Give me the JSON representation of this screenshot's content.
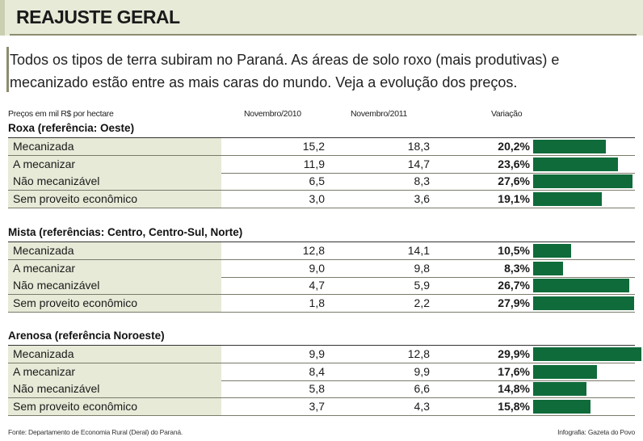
{
  "header": {
    "title": "REAJUSTE GERAL"
  },
  "intro": "Todos os tipos de terra subiram no Paraná. As áreas de solo roxo (mais produtivas) e mecanizado estão entre as mais caras do mundo. Veja a evolução dos preços.",
  "columns": {
    "unit_label": "Preços em mil R$ por hectare",
    "col_2010": "Novembro/2010",
    "col_2011": "Novembro/2011",
    "col_var": "Variação"
  },
  "colors": {
    "bar": "#0f6b3a",
    "row_shade": "#e6ead7"
  },
  "chart_data": {
    "type": "table",
    "bar_series": "Variação (%)",
    "groups": [
      {
        "title": "Roxa (referência: Oeste)",
        "rows": [
          {
            "label": "Mecanizada",
            "v2010": "15,2",
            "v2011": "18,3",
            "var_text": "20,2%",
            "var": 20.2
          },
          {
            "label": "A mecanizar",
            "v2010": "11,9",
            "v2011": "14,7",
            "var_text": "23,6%",
            "var": 23.6
          },
          {
            "label": "Não mecanizável",
            "v2010": "6,5",
            "v2011": "8,3",
            "var_text": "27,6%",
            "var": 27.6
          },
          {
            "label": "Sem proveito econômico",
            "v2010": "3,0",
            "v2011": "3,6",
            "var_text": "19,1%",
            "var": 19.1
          }
        ]
      },
      {
        "title": "Mista (referências: Centro, Centro-Sul, Norte)",
        "rows": [
          {
            "label": "Mecanizada",
            "v2010": "12,8",
            "v2011": "14,1",
            "var_text": "10,5%",
            "var": 10.5
          },
          {
            "label": "A mecanizar",
            "v2010": "9,0",
            "v2011": "9,8",
            "var_text": "8,3%",
            "var": 8.3
          },
          {
            "label": "Não mecanizável",
            "v2010": "4,7",
            "v2011": "5,9",
            "var_text": "26,7%",
            "var": 26.7
          },
          {
            "label": "Sem proveito econômico",
            "v2010": "1,8",
            "v2011": "2,2",
            "var_text": "27,9%",
            "var": 27.9
          }
        ]
      },
      {
        "title": "Arenosa (referência Noroeste)",
        "rows": [
          {
            "label": "Mecanizada",
            "v2010": "9,9",
            "v2011": "12,8",
            "var_text": "29,9%",
            "var": 29.9
          },
          {
            "label": "A mecanizar",
            "v2010": "8,4",
            "v2011": "9,9",
            "var_text": "17,6%",
            "var": 17.6
          },
          {
            "label": "Não mecanizável",
            "v2010": "5,8",
            "v2011": "6,6",
            "var_text": "14,8%",
            "var": 14.8
          },
          {
            "label": "Sem proveito econômico",
            "v2010": "3,7",
            "v2011": "4,3",
            "var_text": "15,8%",
            "var": 15.8
          }
        ]
      }
    ]
  },
  "footer": {
    "source": "Fonte: Departamento de Economia Rural (Deral) do Paraná.",
    "credit": "Infografia: Gazeta do Povo"
  }
}
